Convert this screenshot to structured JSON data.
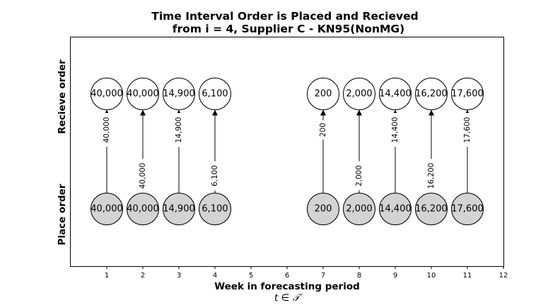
{
  "figure": {
    "title_line1": "Time Interval Order is Placed and Recieved",
    "title_line2": "from i = 4, Supplier C - KN95(NonMG)",
    "xlabel": "Week in forecasting period",
    "xlabel_sub": "t ∈ 𝒯",
    "row_labels": {
      "top": "Recieve order",
      "bottom": "Place order"
    },
    "xticks": [
      "1",
      "2",
      "3",
      "4",
      "5",
      "6",
      "7",
      "8",
      "9",
      "10",
      "11",
      "12"
    ],
    "colors": {
      "place_fill": "#d3d3d3",
      "receive_fill": "#ffffff",
      "stroke": "#000000"
    }
  },
  "chart_data": {
    "type": "diagram",
    "x_axis": {
      "label": "Week in forecasting period",
      "range": [
        0,
        12
      ],
      "ticks": [
        1,
        2,
        3,
        4,
        5,
        6,
        7,
        8,
        9,
        10,
        11,
        12
      ]
    },
    "orders": [
      {
        "place_week": 1,
        "receive_week": 1,
        "place_label": "40,000",
        "receive_label": "40,000",
        "arrow_label": "40,000"
      },
      {
        "place_week": 2,
        "receive_week": 2,
        "place_label": "40,000",
        "receive_label": "40,000",
        "arrow_label": "40,000"
      },
      {
        "place_week": 3,
        "receive_week": 3,
        "place_label": "14,900",
        "receive_label": "14,900",
        "arrow_label": "14,900"
      },
      {
        "place_week": 4,
        "receive_week": 4,
        "place_label": "6,100",
        "receive_label": "6,100",
        "arrow_label": "6,100"
      },
      {
        "place_week": 7,
        "receive_week": 7,
        "place_label": "200",
        "receive_label": "200",
        "arrow_label": "200"
      },
      {
        "place_week": 8,
        "receive_week": 8,
        "place_label": "2,000",
        "receive_label": "2,000",
        "arrow_label": "2,000"
      },
      {
        "place_week": 9,
        "receive_week": 9,
        "place_label": "14,400",
        "receive_label": "14,400",
        "arrow_label": "14,400"
      },
      {
        "place_week": 10,
        "receive_week": 10,
        "place_label": "16,200",
        "receive_label": "16,200",
        "arrow_label": "16,200"
      },
      {
        "place_week": 11,
        "receive_week": 11,
        "place_label": "17,600",
        "receive_label": "17,600",
        "arrow_label": "17,600"
      }
    ]
  }
}
